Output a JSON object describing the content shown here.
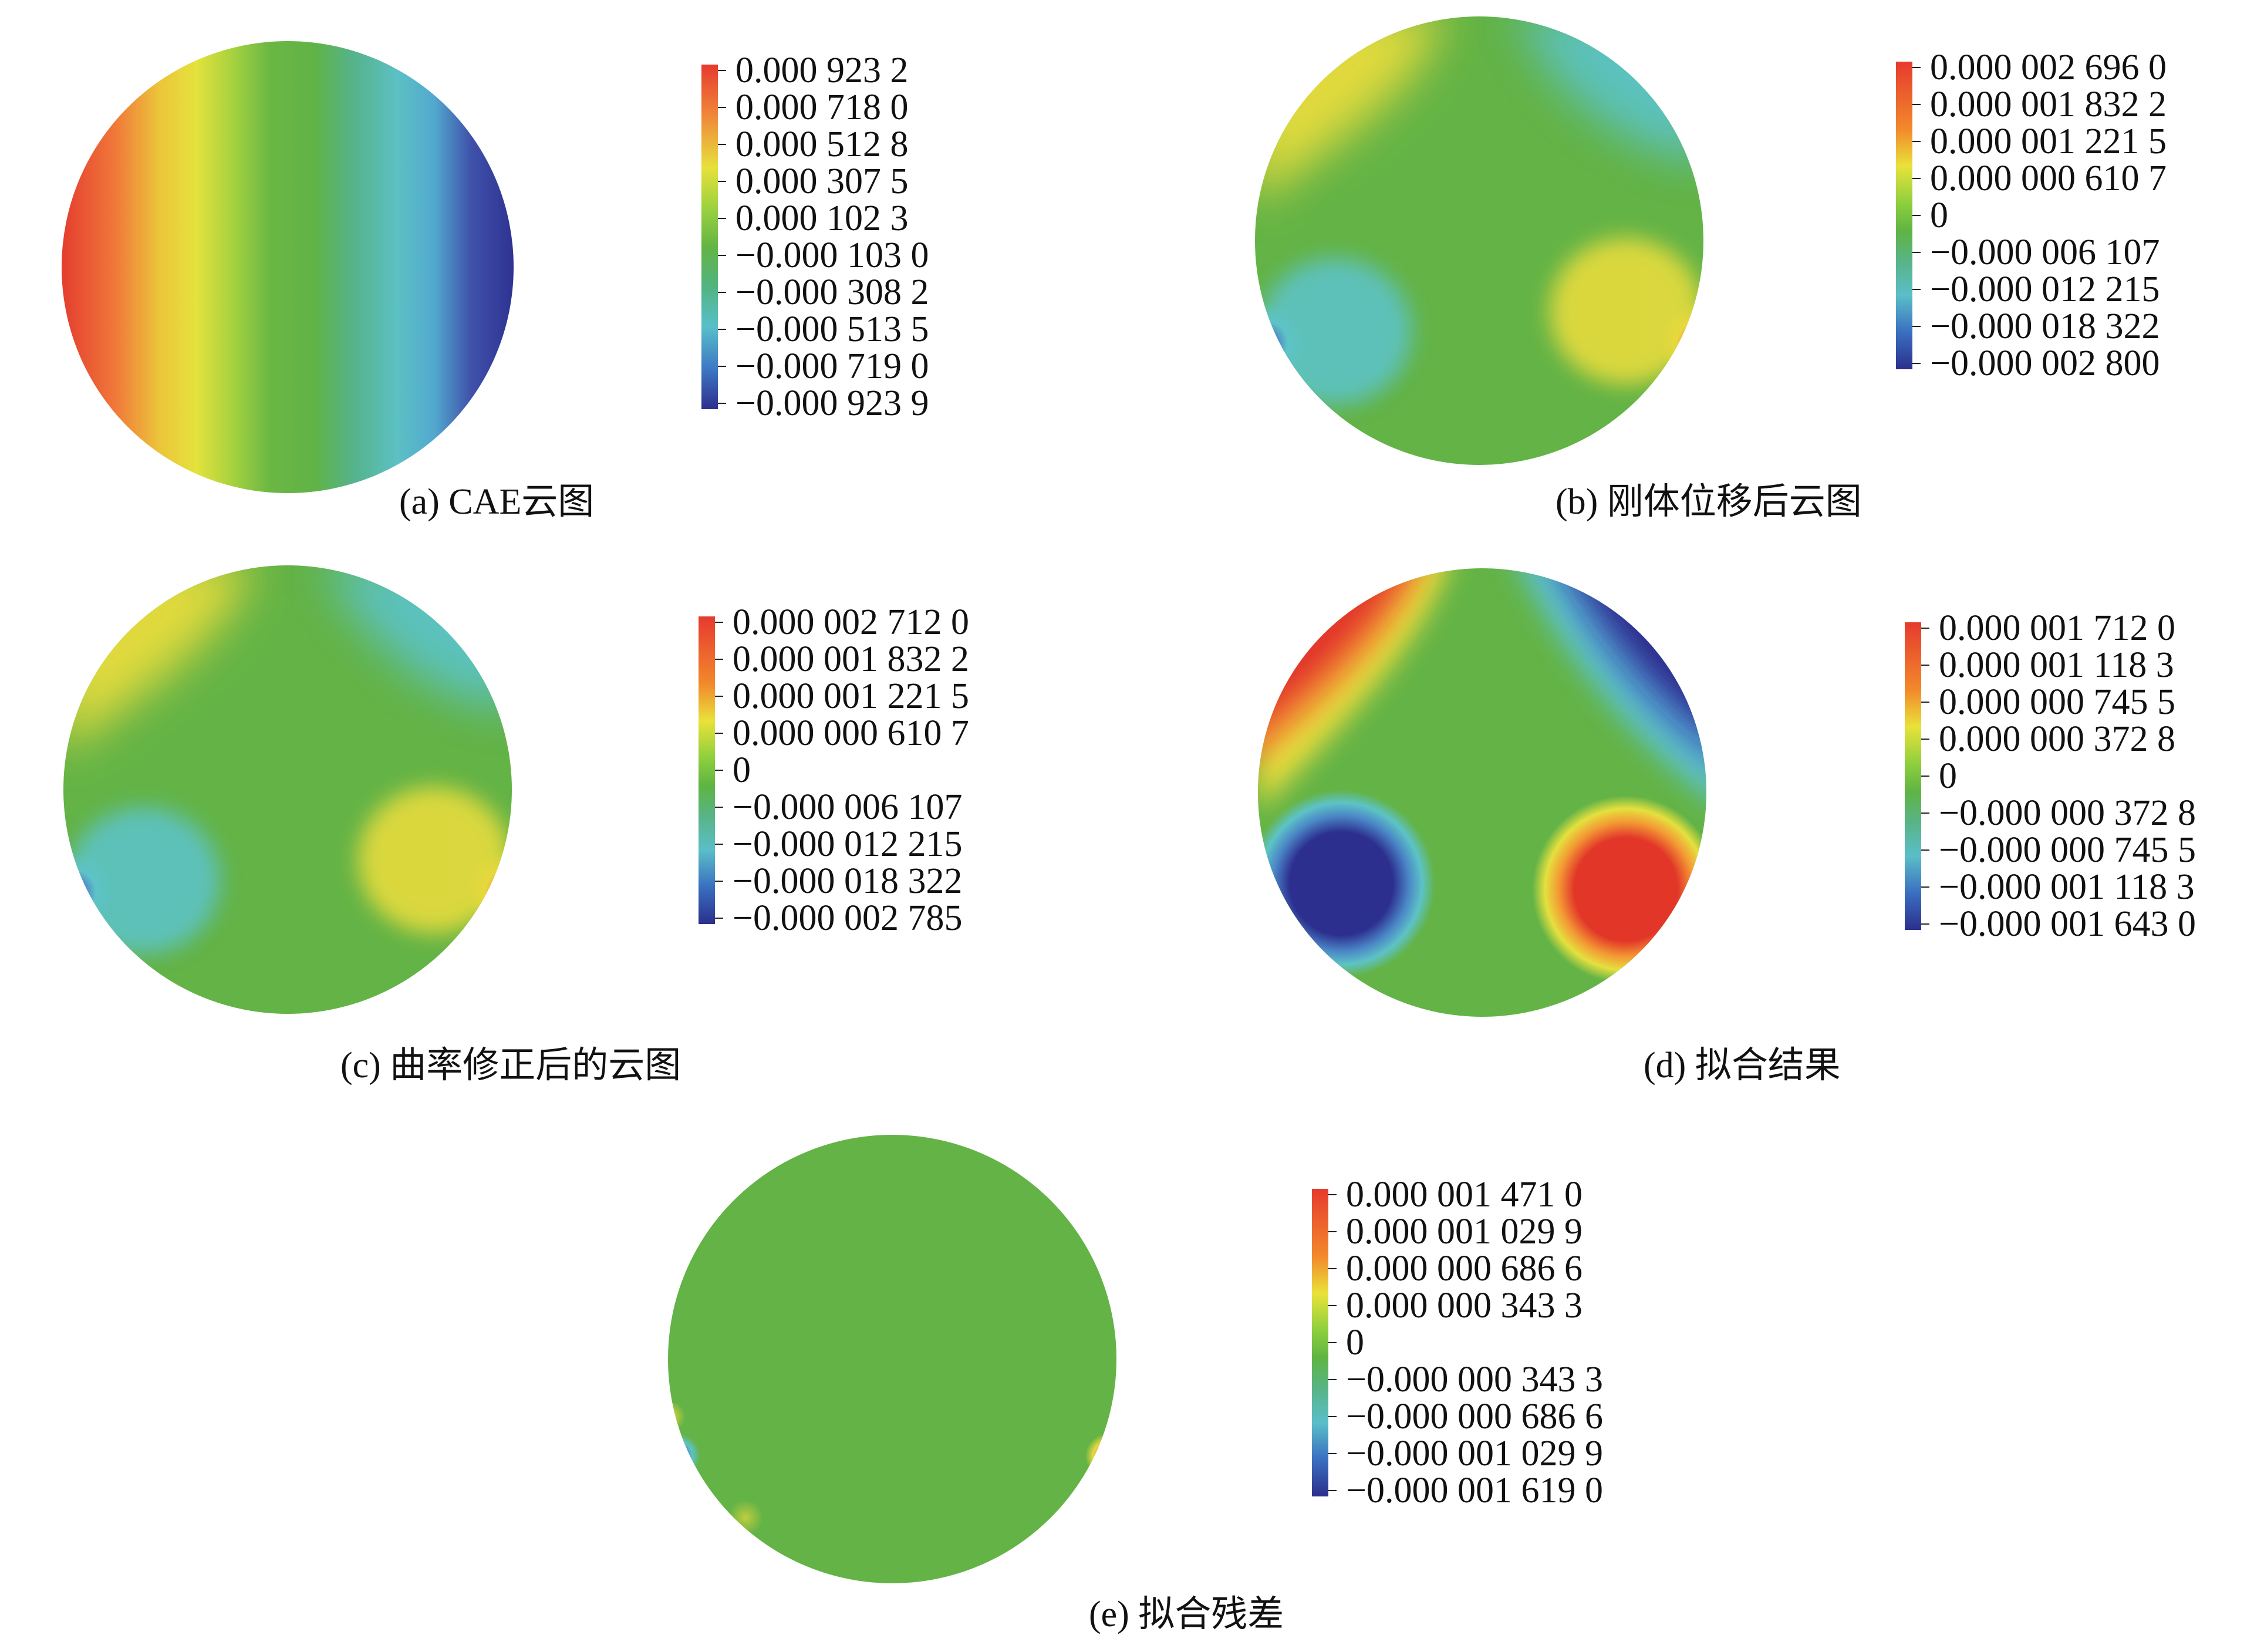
{
  "colors": {
    "red": "#e63a2e",
    "orange": "#f28a2b",
    "yellow": "#e8e23c",
    "green": "#62b345",
    "cyan": "#5cc3c6",
    "blue": "#2b2f8c"
  },
  "panels": [
    {
      "caption": "(a) CAE云图",
      "legend": [
        "0.000 923 2",
        "0.000 718 0",
        "0.000 512 8",
        "0.000 307 5",
        "0.000 102 3",
        "−0.000 103 0",
        "−0.000 308 2",
        "−0.000 513 5",
        "−0.000 719 0",
        "−0.000 923 9"
      ]
    },
    {
      "caption": "(b) 刚体位移后云图",
      "legend": [
        "0.000 002 696 0",
        "0.000 001 832 2",
        "0.000 001 221 5",
        "0.000 000 610 7",
        "0",
        "−0.000 006 107",
        "−0.000 012 215",
        "−0.000 018 322",
        "−0.000 002 800"
      ]
    },
    {
      "caption": "(c) 曲率修正后的云图",
      "legend": [
        "0.000 002 712 0",
        "0.000 001 832 2",
        "0.000 001 221 5",
        "0.000 000 610 7",
        "0",
        "−0.000 006 107",
        "−0.000 012 215",
        "−0.000 018 322",
        "−0.000 002 785"
      ]
    },
    {
      "caption": "(d) 拟合结果",
      "legend": [
        "0.000 001 712 0",
        "0.000 001 118 3",
        "0.000 000 745 5",
        "0.000 000 372 8",
        "0",
        "−0.000 000 372 8",
        "−0.000 000 745 5",
        "−0.000 001 118 3",
        "−0.000 001 643 0"
      ]
    },
    {
      "caption": "(e) 拟合残差",
      "legend": [
        "0.000 001 471 0",
        "0.000 001 029 9",
        "0.000 000 686 6",
        "0.000 000 343 3",
        "0",
        "−0.000 000 343 3",
        "−0.000 000 686 6",
        "−0.000 001 029 9",
        "−0.000 001 619 0"
      ]
    }
  ]
}
